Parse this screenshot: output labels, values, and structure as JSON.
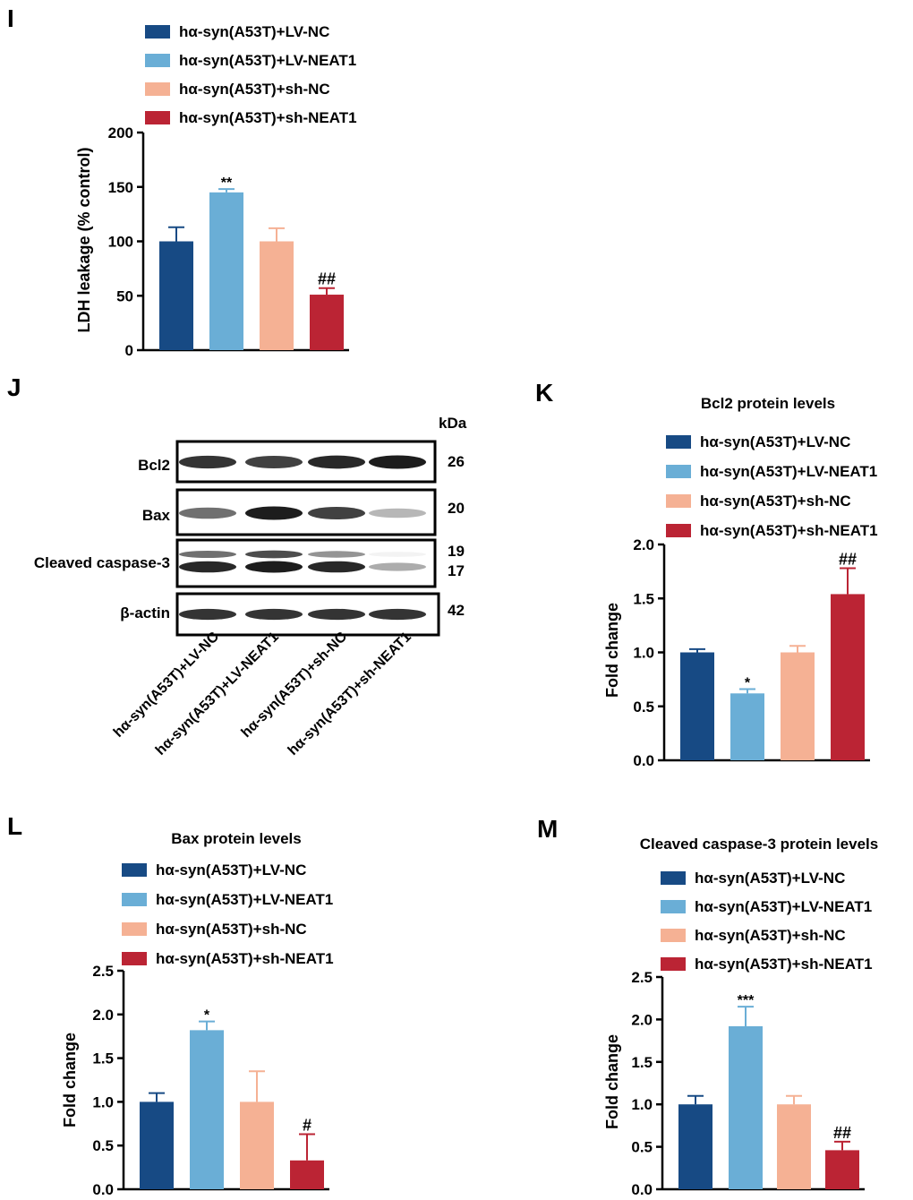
{
  "colors": {
    "dark_blue": "#174a84",
    "light_blue": "#6aaed6",
    "salmon": "#f5b194",
    "crimson": "#bb2434"
  },
  "legend_labels": [
    "hα-syn(A53T)+LV-NC",
    "hα-syn(A53T)+LV-NEAT1",
    "hα-syn(A53T)+sh-NC",
    "hα-syn(A53T)+sh-NEAT1"
  ],
  "panel_letters": {
    "I": "I",
    "J": "J",
    "K": "K",
    "L": "L",
    "M": "M"
  },
  "blot": {
    "kda_header": "kDa",
    "rows": [
      {
        "label": "Bcl2",
        "kda": [
          "26"
        ]
      },
      {
        "label": "Bax",
        "kda": [
          "20"
        ]
      },
      {
        "label": "Cleaved caspase-3",
        "kda": [
          "19",
          "17"
        ]
      },
      {
        "label": "β-actin",
        "kda": [
          "42"
        ]
      }
    ],
    "lanes": [
      "hα-syn(A53T)+LV-NC",
      "hα-syn(A53T)+LV-NEAT1",
      "hα-syn(A53T)+sh-NC",
      "hα-syn(A53T)+sh-NEAT1"
    ],
    "band_intensity": {
      "Bcl2": [
        0.85,
        0.8,
        0.9,
        0.95
      ],
      "Bax": [
        0.6,
        0.95,
        0.8,
        0.3
      ],
      "Cleaved caspase-3 upper": [
        0.6,
        0.75,
        0.45,
        0.05
      ],
      "Cleaved caspase-3 lower": [
        0.9,
        0.95,
        0.9,
        0.35
      ],
      "β-actin": [
        0.85,
        0.85,
        0.85,
        0.85
      ]
    }
  },
  "chart_data": [
    {
      "panel": "I",
      "type": "bar",
      "title": "",
      "xlabel": "",
      "ylabel": "LDH leakage (% control)",
      "categories": [
        "hα-syn(A53T)+LV-NC",
        "hα-syn(A53T)+LV-NEAT1",
        "hα-syn(A53T)+sh-NC",
        "hα-syn(A53T)+sh-NEAT1"
      ],
      "values": [
        100,
        145,
        100,
        51
      ],
      "errors": [
        13,
        3,
        12,
        6
      ],
      "annotations": [
        "",
        "**",
        "",
        "##"
      ],
      "ylim": [
        0,
        200
      ],
      "yticks": [
        "0",
        "50",
        "100",
        "150",
        "200"
      ],
      "legend": "top-left"
    },
    {
      "panel": "K",
      "type": "bar",
      "title": "Bcl2 protein levels",
      "xlabel": "",
      "ylabel": "Fold change",
      "categories": [
        "hα-syn(A53T)+LV-NC",
        "hα-syn(A53T)+LV-NEAT1",
        "hα-syn(A53T)+sh-NC",
        "hα-syn(A53T)+sh-NEAT1"
      ],
      "values": [
        1.0,
        0.62,
        1.0,
        1.54
      ],
      "errors": [
        0.03,
        0.04,
        0.06,
        0.24
      ],
      "annotations": [
        "",
        "*",
        "",
        "##"
      ],
      "ylim": [
        0,
        2.0
      ],
      "yticks": [
        "0.0",
        "0.5",
        "1.0",
        "1.5",
        "2.0"
      ],
      "legend": "top"
    },
    {
      "panel": "L",
      "type": "bar",
      "title": "Bax protein levels",
      "xlabel": "",
      "ylabel": "Fold change",
      "categories": [
        "hα-syn(A53T)+LV-NC",
        "hα-syn(A53T)+LV-NEAT1",
        "hα-syn(A53T)+sh-NC",
        "hα-syn(A53T)+sh-NEAT1"
      ],
      "values": [
        1.0,
        1.82,
        1.0,
        0.33
      ],
      "errors": [
        0.1,
        0.1,
        0.35,
        0.3
      ],
      "annotations": [
        "",
        "*",
        "",
        "#"
      ],
      "ylim": [
        0,
        2.5
      ],
      "yticks": [
        "0.0",
        "0.5",
        "1.0",
        "1.5",
        "2.0",
        "2.5"
      ],
      "legend": "top"
    },
    {
      "panel": "M",
      "type": "bar",
      "title": "Cleaved caspase-3 protein levels",
      "xlabel": "",
      "ylabel": "Fold change",
      "categories": [
        "hα-syn(A53T)+LV-NC",
        "hα-syn(A53T)+LV-NEAT1",
        "hα-syn(A53T)+sh-NC",
        "hα-syn(A53T)+sh-NEAT1"
      ],
      "values": [
        1.0,
        1.92,
        1.0,
        0.46
      ],
      "errors": [
        0.1,
        0.23,
        0.1,
        0.1
      ],
      "annotations": [
        "",
        "***",
        "",
        "##"
      ],
      "ylim": [
        0,
        2.5
      ],
      "yticks": [
        "0.0",
        "0.5",
        "1.0",
        "1.5",
        "2.0",
        "2.5"
      ],
      "legend": "top"
    }
  ]
}
